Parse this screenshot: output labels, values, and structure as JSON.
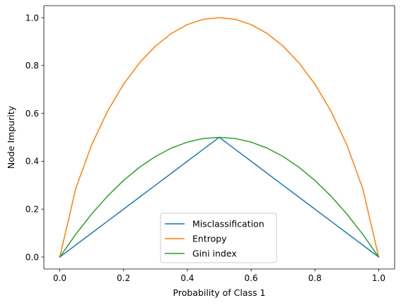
{
  "chart_data": {
    "type": "line",
    "title": "",
    "xlabel": "Probability of Class 1",
    "ylabel": "Node Impurity",
    "xlim": [
      -0.05,
      1.05
    ],
    "ylim": [
      -0.05,
      1.05
    ],
    "xticks": [
      0.0,
      0.2,
      0.4,
      0.6,
      0.8,
      1.0
    ],
    "yticks": [
      0.0,
      0.2,
      0.4,
      0.6,
      0.8,
      1.0
    ],
    "xtick_labels": [
      "0.0",
      "0.2",
      "0.4",
      "0.6",
      "0.8",
      "1.0"
    ],
    "ytick_labels": [
      "0.0",
      "0.2",
      "0.4",
      "0.6",
      "0.8",
      "1.0"
    ],
    "grid": false,
    "legend_position": "lower center",
    "x": [
      0.0,
      0.05,
      0.1,
      0.15,
      0.2,
      0.25,
      0.3,
      0.35,
      0.4,
      0.45,
      0.5,
      0.55,
      0.6,
      0.65,
      0.7,
      0.75,
      0.8,
      0.85,
      0.9,
      0.95,
      1.0
    ],
    "series": [
      {
        "name": "Misclassification",
        "color": "#1f77b4",
        "values": [
          0.0,
          0.05,
          0.1,
          0.15,
          0.2,
          0.25,
          0.3,
          0.35,
          0.4,
          0.45,
          0.5,
          0.45,
          0.4,
          0.35,
          0.3,
          0.25,
          0.2,
          0.15,
          0.1,
          0.05,
          0.0
        ]
      },
      {
        "name": "Entropy",
        "color": "#ff7f0e",
        "values": [
          0.0,
          0.286,
          0.469,
          0.61,
          0.722,
          0.811,
          0.881,
          0.934,
          0.971,
          0.993,
          1.0,
          0.993,
          0.971,
          0.934,
          0.881,
          0.811,
          0.722,
          0.61,
          0.469,
          0.286,
          0.0
        ]
      },
      {
        "name": "Gini index",
        "color": "#2ca02c",
        "values": [
          0.0,
          0.095,
          0.18,
          0.255,
          0.32,
          0.375,
          0.42,
          0.455,
          0.48,
          0.495,
          0.5,
          0.495,
          0.48,
          0.455,
          0.42,
          0.375,
          0.32,
          0.255,
          0.18,
          0.095,
          0.0
        ]
      }
    ]
  }
}
